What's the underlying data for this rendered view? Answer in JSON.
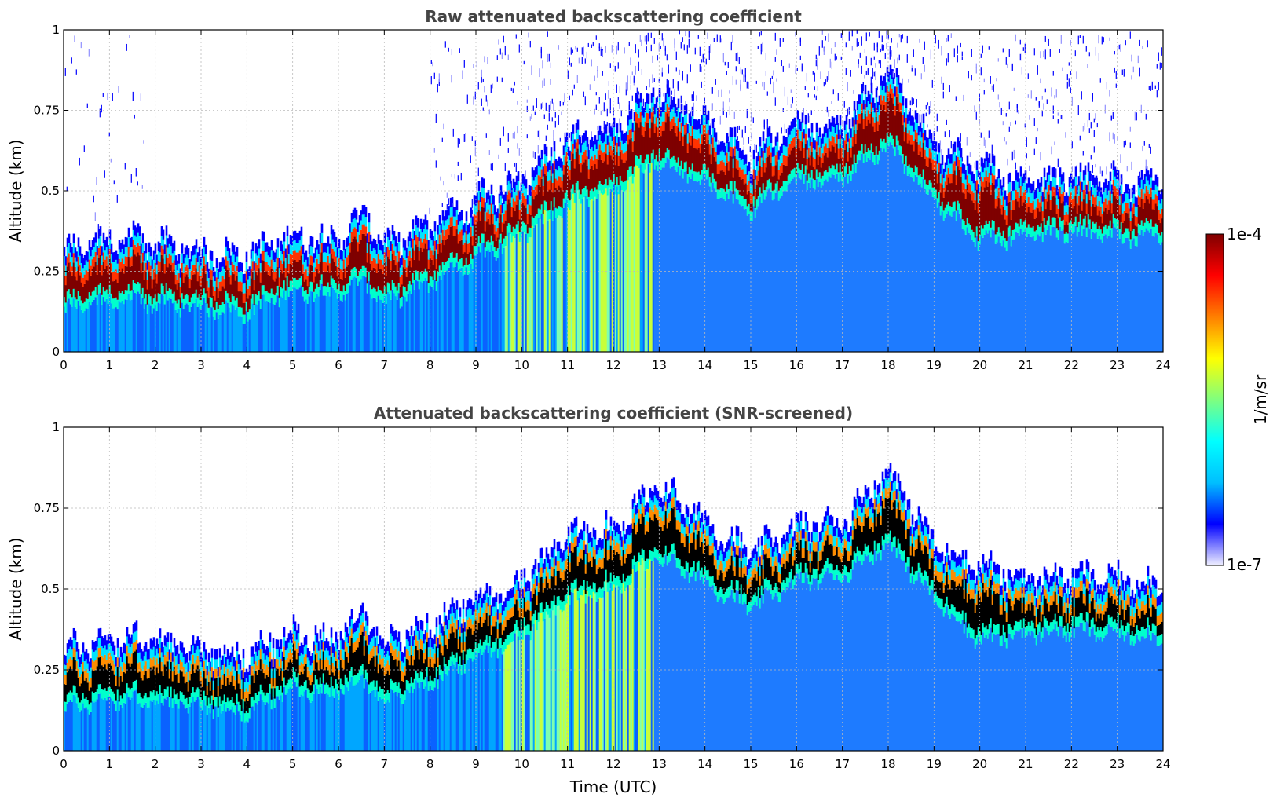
{
  "chart_data": [
    {
      "type": "heatmap",
      "title": "Raw attenuated backscattering coefficient",
      "xlabel": "",
      "ylabel": "Altitude (km)",
      "xlim": [
        0,
        24
      ],
      "ylim": [
        0,
        1
      ],
      "x_ticks": [
        "0",
        "1",
        "2",
        "3",
        "4",
        "5",
        "6",
        "7",
        "8",
        "9",
        "10",
        "11",
        "12",
        "13",
        "14",
        "15",
        "16",
        "17",
        "18",
        "19",
        "20",
        "21",
        "22",
        "23",
        "24"
      ],
      "y_ticks": [
        "0",
        "0.25",
        "0.5",
        "0.75",
        "1"
      ],
      "grid": true,
      "screened": false,
      "layer_top_km": [
        {
          "x": 0,
          "y": 0.22
        },
        {
          "x": 1,
          "y": 0.26
        },
        {
          "x": 2,
          "y": 0.25
        },
        {
          "x": 3,
          "y": 0.22
        },
        {
          "x": 4,
          "y": 0.21
        },
        {
          "x": 5,
          "y": 0.27
        },
        {
          "x": 6,
          "y": 0.26
        },
        {
          "x": 6.6,
          "y": 0.34
        },
        {
          "x": 7,
          "y": 0.24
        },
        {
          "x": 8,
          "y": 0.3
        },
        {
          "x": 9,
          "y": 0.38
        },
        {
          "x": 10,
          "y": 0.44
        },
        {
          "x": 11,
          "y": 0.57
        },
        {
          "x": 12,
          "y": 0.6
        },
        {
          "x": 13,
          "y": 0.73
        },
        {
          "x": 14,
          "y": 0.62
        },
        {
          "x": 15,
          "y": 0.52
        },
        {
          "x": 16,
          "y": 0.6
        },
        {
          "x": 17,
          "y": 0.62
        },
        {
          "x": 18,
          "y": 0.78
        },
        {
          "x": 19,
          "y": 0.55
        },
        {
          "x": 20,
          "y": 0.48
        },
        {
          "x": 21,
          "y": 0.44
        },
        {
          "x": 22,
          "y": 0.45
        },
        {
          "x": 23,
          "y": 0.44
        },
        {
          "x": 24,
          "y": 0.43
        }
      ],
      "layer_bottom_km": [
        {
          "x": 0,
          "y": 0.13
        },
        {
          "x": 1,
          "y": 0.16
        },
        {
          "x": 2,
          "y": 0.15
        },
        {
          "x": 3,
          "y": 0.14
        },
        {
          "x": 4,
          "y": 0.12
        },
        {
          "x": 5,
          "y": 0.19
        },
        {
          "x": 6,
          "y": 0.18
        },
        {
          "x": 6.6,
          "y": 0.22
        },
        {
          "x": 7,
          "y": 0.15
        },
        {
          "x": 8,
          "y": 0.21
        },
        {
          "x": 9,
          "y": 0.29
        },
        {
          "x": 10,
          "y": 0.36
        },
        {
          "x": 11,
          "y": 0.46
        },
        {
          "x": 12,
          "y": 0.5
        },
        {
          "x": 13,
          "y": 0.6
        },
        {
          "x": 14,
          "y": 0.52
        },
        {
          "x": 15,
          "y": 0.44
        },
        {
          "x": 16,
          "y": 0.52
        },
        {
          "x": 17,
          "y": 0.54
        },
        {
          "x": 18,
          "y": 0.64
        },
        {
          "x": 19,
          "y": 0.47
        },
        {
          "x": 20,
          "y": 0.34
        },
        {
          "x": 21,
          "y": 0.36
        },
        {
          "x": 22,
          "y": 0.37
        },
        {
          "x": 23,
          "y": 0.36
        },
        {
          "x": 24,
          "y": 0.35
        }
      ]
    },
    {
      "type": "heatmap",
      "title": "Attenuated backscattering coefficient (SNR-screened)",
      "xlabel": "Time (UTC)",
      "ylabel": "Altitude (km)",
      "xlim": [
        0,
        24
      ],
      "ylim": [
        0,
        1
      ],
      "x_ticks": [
        "0",
        "1",
        "2",
        "3",
        "4",
        "5",
        "6",
        "7",
        "8",
        "9",
        "10",
        "11",
        "12",
        "13",
        "14",
        "15",
        "16",
        "17",
        "18",
        "19",
        "20",
        "21",
        "22",
        "23",
        "24"
      ],
      "y_ticks": [
        "0",
        "0.25",
        "0.5",
        "0.75",
        "1"
      ],
      "grid": true,
      "screened": true
    }
  ],
  "colorbar": {
    "max_label": "1e-4",
    "min_label": "1e-7",
    "unit": "1/m/sr",
    "scale": "log",
    "colors": [
      "#efefff",
      "#0000ff",
      "#00bfff",
      "#00ffff",
      "#7fff7f",
      "#ffff00",
      "#ff7f00",
      "#ff0000",
      "#7f0000"
    ]
  },
  "colors": {
    "axis": "#000000",
    "grid": "#bbbbbb",
    "title": "#444444",
    "screened_saturation": "#000000"
  }
}
